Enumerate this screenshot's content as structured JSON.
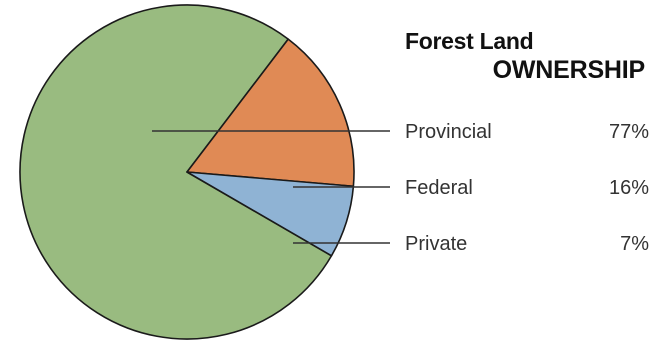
{
  "chart_data": {
    "type": "pie",
    "title_line1": "Forest Land",
    "title_line2": "OWNERSHIP",
    "slices": [
      {
        "label": "Provincial",
        "value": 77,
        "value_label": "77%",
        "color": "#99bb80"
      },
      {
        "label": "Federal",
        "value": 16,
        "value_label": "16%",
        "color": "#e08a55"
      },
      {
        "label": "Private",
        "value": 7,
        "value_label": "7%",
        "color": "#8fb3d4"
      }
    ],
    "legend_placement": "right"
  }
}
